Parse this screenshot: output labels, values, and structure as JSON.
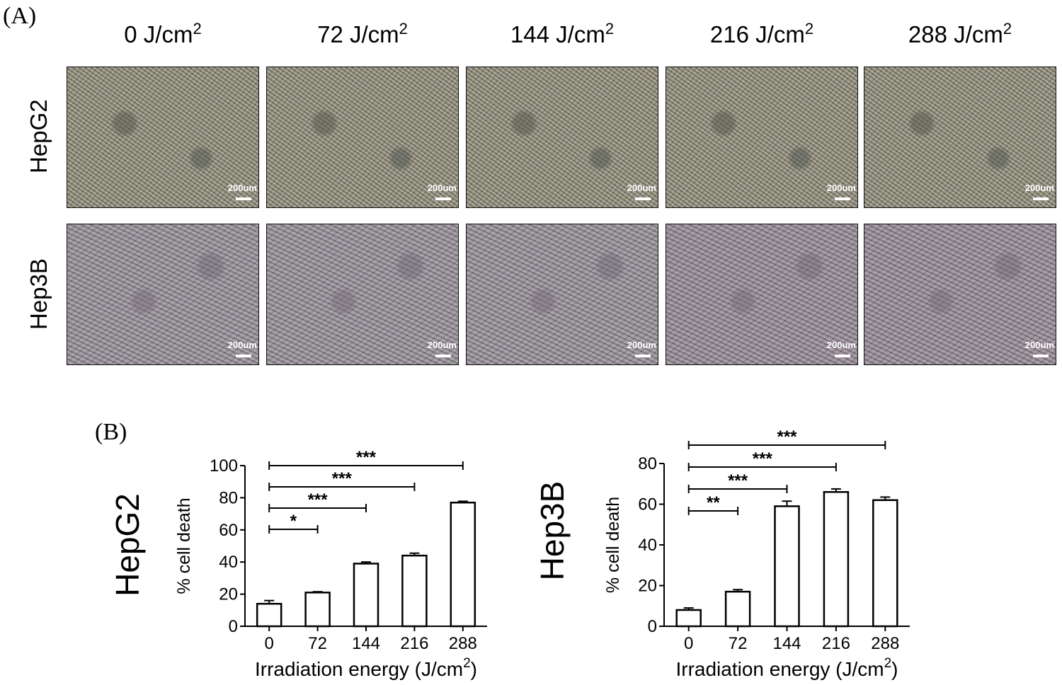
{
  "panel_a_label": "(A)",
  "panel_b_label": "(B)",
  "column_headers": [
    {
      "base": "0 J/cm",
      "sup": "2"
    },
    {
      "base": "72 J/cm",
      "sup": "2"
    },
    {
      "base": "144 J/cm",
      "sup": "2"
    },
    {
      "base": "216 J/cm",
      "sup": "2"
    },
    {
      "base": "288 J/cm",
      "sup": "2"
    }
  ],
  "row_headers": [
    "HepG2",
    "Hep3B"
  ],
  "scale_bar_label": "200um",
  "chart_data": [
    {
      "type": "bar",
      "title": "HepG2",
      "categories": [
        "0",
        "72",
        "144",
        "216",
        "288"
      ],
      "values": [
        14,
        21,
        39,
        44,
        77
      ],
      "errors": [
        2,
        0.5,
        1,
        1.5,
        0.8
      ],
      "ylabel": "% cell death",
      "xlabel": "Irradiation energy (J/cm",
      "xlabel_sup": "2",
      "xlabel_end": ")",
      "ylim": [
        0,
        100
      ],
      "yticks": [
        0,
        20,
        40,
        60,
        80,
        100
      ],
      "significance": [
        {
          "from": "0",
          "to": "72",
          "label": "*"
        },
        {
          "from": "0",
          "to": "144",
          "label": "***"
        },
        {
          "from": "0",
          "to": "216",
          "label": "***"
        },
        {
          "from": "0",
          "to": "288",
          "label": "***"
        }
      ]
    },
    {
      "type": "bar",
      "title": "Hep3B",
      "categories": [
        "0",
        "72",
        "144",
        "216",
        "288"
      ],
      "values": [
        8,
        17,
        59,
        66,
        62
      ],
      "errors": [
        1,
        1,
        2.5,
        1.5,
        1.5
      ],
      "ylabel": "% cell death",
      "xlabel": "Irradiation energy (J/cm",
      "xlabel_sup": "2",
      "xlabel_end": ")",
      "ylim": [
        0,
        80
      ],
      "yticks": [
        0,
        20,
        40,
        60,
        80
      ],
      "significance": [
        {
          "from": "0",
          "to": "72",
          "label": "**"
        },
        {
          "from": "0",
          "to": "144",
          "label": "***"
        },
        {
          "from": "0",
          "to": "216",
          "label": "***"
        },
        {
          "from": "0",
          "to": "288",
          "label": "***"
        }
      ]
    }
  ]
}
